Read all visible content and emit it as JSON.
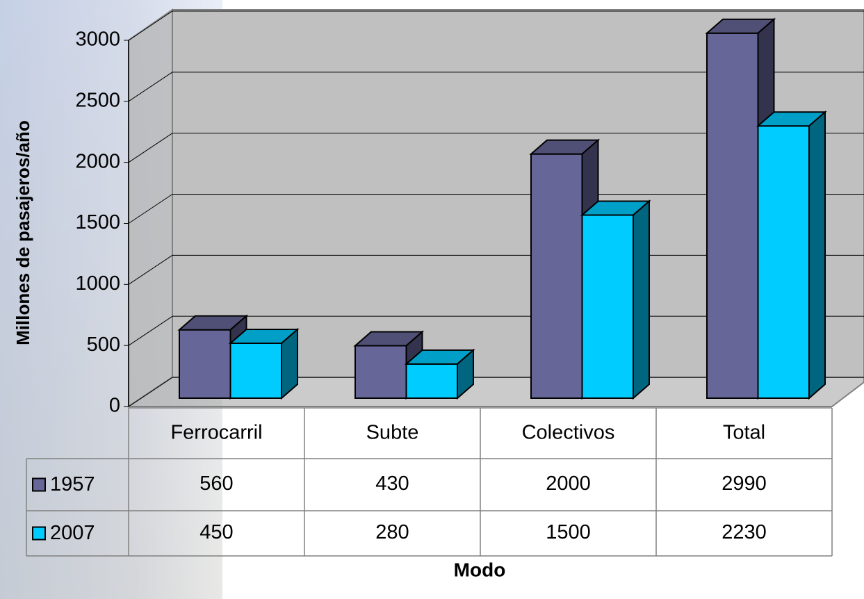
{
  "chart_data": {
    "type": "bar3d",
    "x_label": "Modo",
    "y_label": "Millones de pasajeros/año",
    "categories": [
      "Ferrocarril",
      "Subte",
      "Colectivos",
      "Total"
    ],
    "series": [
      {
        "name": "1957",
        "color": "#666699",
        "values": [
          560,
          430,
          2000,
          2990
        ]
      },
      {
        "name": "2007",
        "color": "#00ccff",
        "values": [
          450,
          280,
          1500,
          2230
        ]
      }
    ],
    "ylim": [
      0,
      3000
    ],
    "yticks": [
      0,
      500,
      1000,
      1500,
      2000,
      2500,
      3000
    ],
    "grid": true,
    "data_table": true
  }
}
